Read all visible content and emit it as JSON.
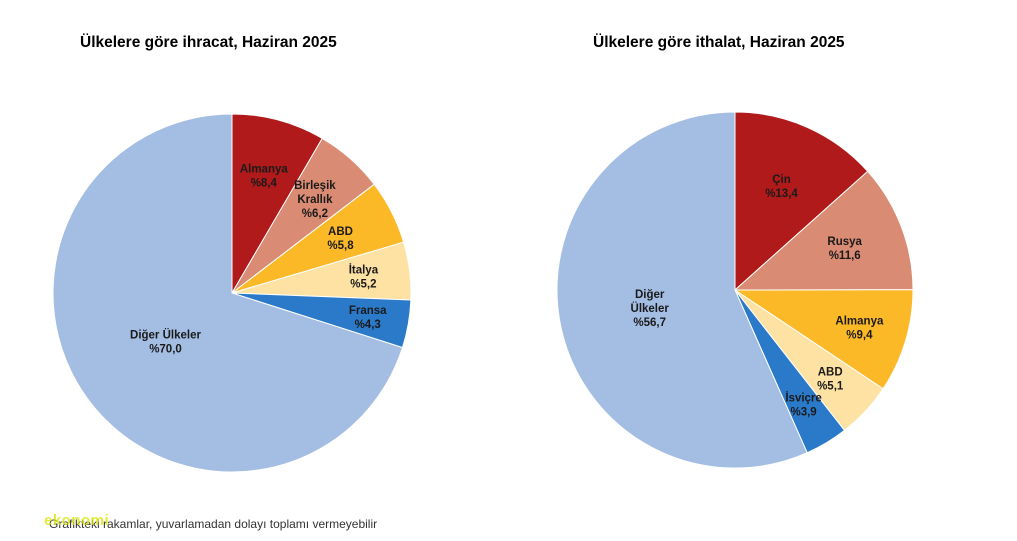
{
  "chart_data": [
    {
      "type": "pie",
      "title": "Ülkelere göre ihracat, Haziran 2025",
      "slices": [
        {
          "label": [
            "Almanya"
          ],
          "value_label": "%8,4",
          "value": 8.4,
          "color": "#b01a1a"
        },
        {
          "label": [
            "Birleşik",
            "Krallık"
          ],
          "value_label": "%6,2",
          "value": 6.2,
          "color": "#d98b73"
        },
        {
          "label": [
            "ABD"
          ],
          "value_label": "%5,8",
          "value": 5.8,
          "color": "#fbb928"
        },
        {
          "label": [
            "İtalya"
          ],
          "value_label": "%5,2",
          "value": 5.2,
          "color": "#fde2a3"
        },
        {
          "label": [
            "Fransa"
          ],
          "value_label": "%4,3",
          "value": 4.3,
          "color": "#2b7ac9"
        },
        {
          "label": [
            "Diğer Ülkeler"
          ],
          "value_label": "%70,0",
          "value": 70.0,
          "color": "#a3bde3"
        }
      ]
    },
    {
      "type": "pie",
      "title": "Ülkelere göre ithalat, Haziran 2025",
      "slices": [
        {
          "label": [
            "Çin"
          ],
          "value_label": "%13,4",
          "value": 13.4,
          "color": "#b01a1a"
        },
        {
          "label": [
            "Rusya"
          ],
          "value_label": "%11,6",
          "value": 11.6,
          "color": "#d98b73"
        },
        {
          "label": [
            "Almanya"
          ],
          "value_label": "%9,4",
          "value": 9.4,
          "color": "#fbb928"
        },
        {
          "label": [
            "ABD"
          ],
          "value_label": "%5,1",
          "value": 5.1,
          "color": "#fde2a3"
        },
        {
          "label": [
            "İsviçre"
          ],
          "value_label": "%3,9",
          "value": 3.9,
          "color": "#2b7ac9"
        },
        {
          "label": [
            "Diğer",
            "Ülkeler"
          ],
          "value_label": "%56,7",
          "value": 56.7,
          "color": "#a3bde3"
        }
      ]
    }
  ],
  "footnote": "Grafikteki rakamlar, yuvarlamadan dolayı toplamı vermeyebilir",
  "watermark": "ekonomi"
}
